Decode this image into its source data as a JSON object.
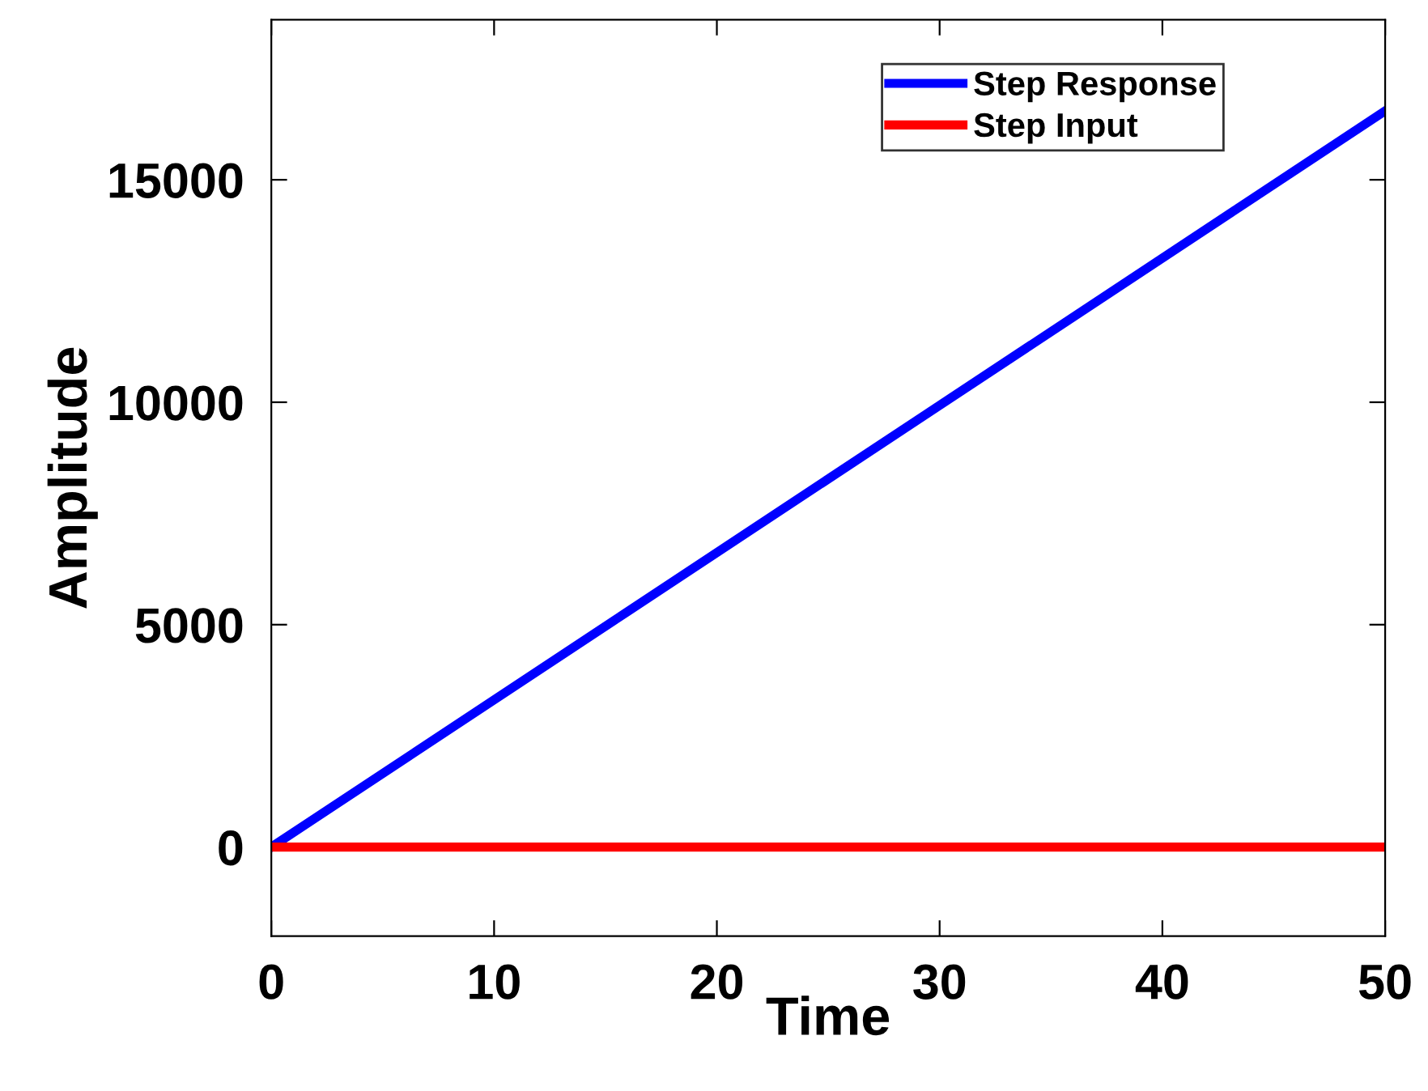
{
  "chart_data": {
    "type": "line",
    "xlabel": "Time",
    "ylabel": "Amplitude",
    "xlim": [
      0,
      50
    ],
    "ylim": [
      -2000,
      18600
    ],
    "xticks": [
      0,
      10,
      20,
      30,
      40,
      50
    ],
    "yticks": [
      0,
      5000,
      10000,
      15000
    ],
    "grid": false,
    "legend": "top right",
    "marker": "none",
    "line_style": "solid",
    "x": [
      0,
      50
    ],
    "series": [
      {
        "name": "Step Response",
        "color": "#0000ff",
        "values": [
          0,
          16550
        ]
      },
      {
        "name": "Step Input",
        "color": "#ff0000",
        "values": [
          0,
          0
        ]
      }
    ]
  }
}
